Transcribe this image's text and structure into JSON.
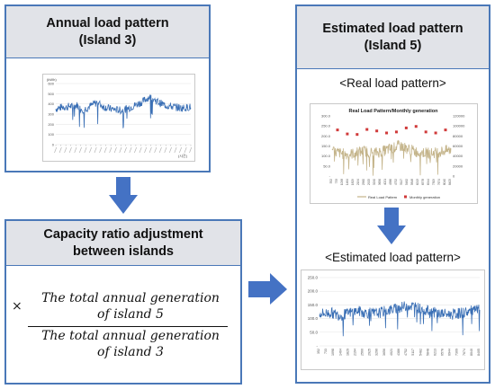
{
  "panel1": {
    "title_line1": "Annual load pattern",
    "title_line2": "(Island 3)"
  },
  "panel2": {
    "title_line1": "Capacity ratio adjustment",
    "title_line2": "between islands"
  },
  "panel3": {
    "title_line1": "Estimated load pattern",
    "title_line2": "(Island 5)",
    "caption_real": "<Real load pattern>",
    "caption_estimated": "<Estimated load pattern>"
  },
  "formula": {
    "multiply": "×",
    "numerator_line1": "The total annual generation",
    "numerator_line2": "of island 5",
    "denominator_line1": "The total annual generation",
    "denominator_line2": "of island 3"
  },
  "colors": {
    "border": "#4a78b8",
    "header_bg": "#e1e3e8",
    "arrow": "#4472c4",
    "series_blue": "#3a6fb5",
    "series_tan": "#c4b48a",
    "marker_red": "#d03a3a"
  },
  "chart_data": [
    {
      "type": "line",
      "title": "",
      "ylabel": "(kWh)",
      "xlabel": "(시간)",
      "y_ticks": [
        "600",
        "500",
        "400",
        "300",
        "200",
        "100",
        "0"
      ],
      "ylim": [
        0,
        600
      ],
      "series": [
        {
          "values": [
            352,
            360,
            372,
            365,
            380,
            370,
            390,
            355,
            345,
            360,
            380,
            400,
            415,
            390,
            370,
            360,
            350,
            345,
            340,
            335,
            348,
            360,
            372,
            390,
            405,
            420,
            445,
            470,
            450,
            430,
            410,
            395,
            385,
            378,
            372,
            366,
            360,
            362,
            365,
            370
          ]
        }
      ]
    },
    {
      "type": "line",
      "title": "Real Load Pattern/Monthly generation",
      "y_ticks_left": [
        "300.0",
        "250.0",
        "200.0",
        "150.0",
        "100.0",
        "50.0",
        "-"
      ],
      "y_ticks_right": [
        "120000",
        "100000",
        "80000",
        "60000",
        "40000",
        "20000",
        "0"
      ],
      "x_ticks": [
        "352",
        "733",
        "1098",
        "1464",
        "1829",
        "2194",
        "2560",
        "2925",
        "3290",
        "3656",
        "4021",
        "4386",
        "4752",
        "5117",
        "5482",
        "5848",
        "6213",
        "6578",
        "6944",
        "7309",
        "7674",
        "8040",
        "8405"
      ],
      "ylim": [
        0,
        300
      ],
      "ylim_right": [
        0,
        120000
      ],
      "series": [
        {
          "name": "Real Load Pattern",
          "axis": "left",
          "values": [
            120,
            118,
            115,
            110,
            108,
            112,
            118,
            122,
            125,
            120,
            115,
            118,
            122,
            128,
            135,
            140,
            150,
            148,
            140,
            132,
            125,
            120,
            118,
            116,
            114,
            116,
            120,
            124,
            128,
            130
          ]
        },
        {
          "name": "Monthly generation",
          "axis": "right",
          "values": [
            92000,
            84000,
            83000,
            93000,
            90000,
            86000,
            88000,
            96000,
            99000,
            88000,
            86000,
            92000
          ]
        }
      ]
    },
    {
      "type": "line",
      "title": "",
      "y_ticks": [
        "250.0",
        "200.0",
        "150.0",
        "100.0",
        "50.0",
        "-"
      ],
      "x_ticks": [
        "352",
        "733",
        "1098",
        "1464",
        "1829",
        "2194",
        "2560",
        "2925",
        "3290",
        "3656",
        "4021",
        "4386",
        "4752",
        "5117",
        "5482",
        "5848",
        "6213",
        "6578",
        "6944",
        "7309",
        "7674",
        "8040",
        "8405"
      ],
      "ylim": [
        0,
        250
      ],
      "series": [
        {
          "values": [
            120,
            118,
            122,
            115,
            112,
            118,
            125,
            128,
            122,
            120,
            118,
            122,
            128,
            132,
            138,
            142,
            148,
            145,
            138,
            132,
            126,
            122,
            118,
            116,
            115,
            118,
            122,
            126,
            130,
            132
          ]
        }
      ]
    }
  ]
}
